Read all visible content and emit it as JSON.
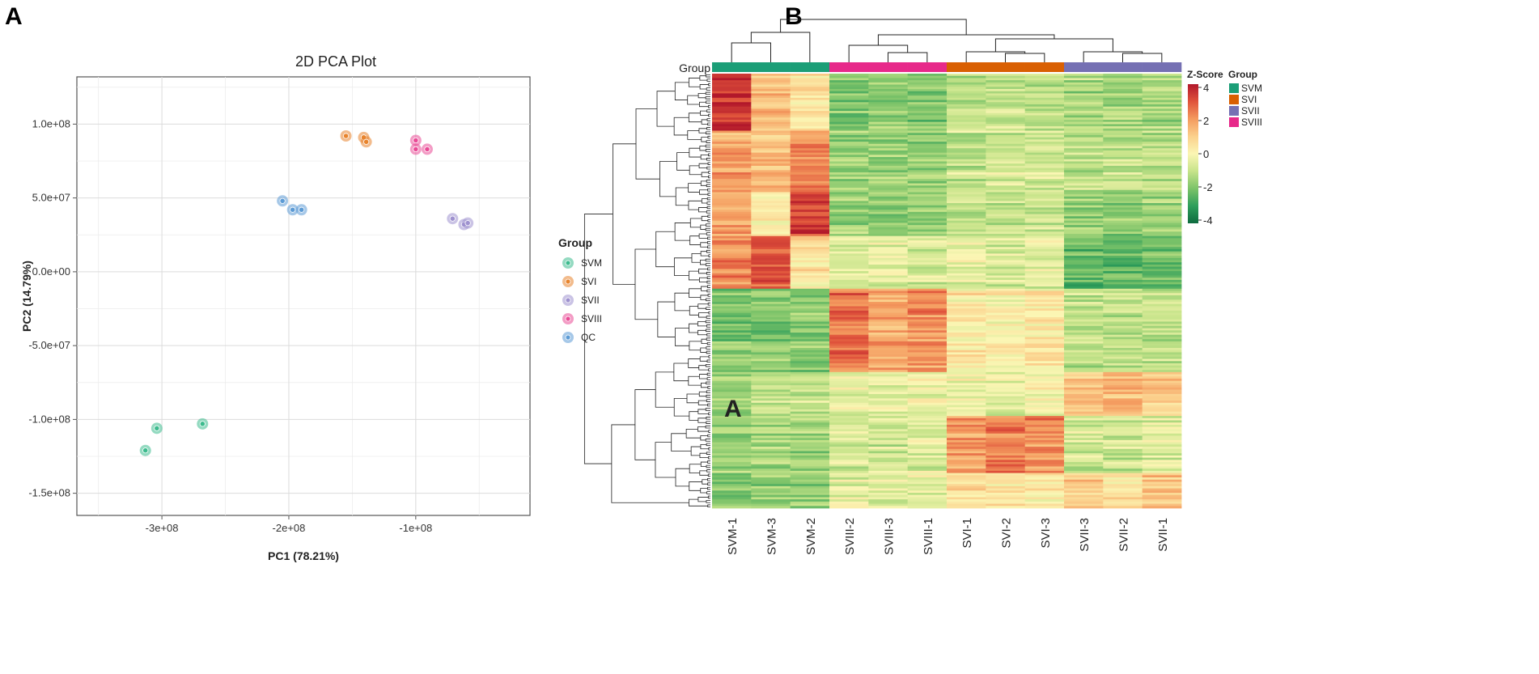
{
  "panel_labels": {
    "a": "A",
    "b": "B"
  },
  "colors": {
    "SVM": "#1B9E77",
    "SVI": "#D95F02",
    "SVII": "#7570B3",
    "SVIII": "#E7298A",
    "QC": "#4A90C8",
    "pca_SVM": "#3DBB8E",
    "pca_SVI": "#E8842D",
    "pca_SVII": "#9E91CF",
    "pca_SVIII": "#E94A96",
    "pca_QC": "#5C9BD5"
  },
  "chart_data": [
    {
      "type": "scatter",
      "title": "2D PCA Plot",
      "xlabel": "PC1 (78.21%)",
      "ylabel": "PC2 (14.79%)",
      "xlim": [
        -367000000,
        -10000000
      ],
      "ylim": [
        -165000000,
        132000000
      ],
      "xticks": [
        {
          "value": -300000000,
          "label": "-3e+08"
        },
        {
          "value": -200000000,
          "label": "-2e+08"
        },
        {
          "value": -100000000,
          "label": "-1e+08"
        }
      ],
      "yticks": [
        {
          "value": 100000000,
          "label": "1.0e+08"
        },
        {
          "value": 50000000,
          "label": "5.0e+07"
        },
        {
          "value": 0,
          "label": "0.0e+00"
        },
        {
          "value": -50000000,
          "label": "-5.0e+07"
        },
        {
          "value": -100000000,
          "label": "-1.0e+08"
        },
        {
          "value": -150000000,
          "label": "-1.5e+08"
        }
      ],
      "legend_title": "Group",
      "legend_position": "right",
      "series": [
        {
          "name": "SVM",
          "points": [
            [
              -304000000,
              -106000000
            ],
            [
              -268000000,
              -103000000
            ],
            [
              -313000000,
              -121000000
            ]
          ]
        },
        {
          "name": "SVI",
          "points": [
            [
              -155000000,
              92000000
            ],
            [
              -141000000,
              91000000
            ],
            [
              -139000000,
              88000000
            ]
          ]
        },
        {
          "name": "SVII",
          "points": [
            [
              -71000000,
              36000000
            ],
            [
              -62000000,
              32000000
            ],
            [
              -59000000,
              33000000
            ]
          ]
        },
        {
          "name": "SVIII",
          "points": [
            [
              -100000000,
              89000000
            ],
            [
              -100000000,
              83000000
            ],
            [
              -91000000,
              83000000
            ]
          ]
        },
        {
          "name": "QC",
          "points": [
            [
              -205000000,
              48000000
            ],
            [
              -197000000,
              42000000
            ],
            [
              -190000000,
              42000000
            ]
          ]
        }
      ]
    },
    {
      "type": "heatmap",
      "title": "",
      "group_label": "Group",
      "columns": [
        "SVM-1",
        "SVM-3",
        "SVM-2",
        "SVIII-2",
        "SVIII-3",
        "SVIII-1",
        "SVI-1",
        "SVI-2",
        "SVI-3",
        "SVII-3",
        "SVII-2",
        "SVII-1"
      ],
      "column_groups": [
        "SVM",
        "SVM",
        "SVM",
        "SVIII",
        "SVIII",
        "SVIII",
        "SVI",
        "SVI",
        "SVI",
        "SVII",
        "SVII",
        "SVII"
      ],
      "colorbar": {
        "title": "Z-Score",
        "min": -4,
        "max": 4,
        "ticks": [
          "4",
          "2",
          "0",
          "-2",
          "-4"
        ],
        "stops": [
          "#0E6B3F",
          "#2E9E5B",
          "#7CC369",
          "#C7E48A",
          "#FBF6B4",
          "#FBD08C",
          "#F49B5F",
          "#E0533B",
          "#B2182B"
        ]
      },
      "legend_title": "Group",
      "legend": [
        "SVM",
        "SVI",
        "SVII",
        "SVIII"
      ],
      "annotation": "A",
      "bands": [
        {
          "rows": 26,
          "values": [
            3.6,
            1.2,
            0.4,
            -2,
            -1.8,
            -1.9,
            -1.2,
            -1.0,
            -1.1,
            -1.4,
            -1.4,
            -1.4
          ]
        },
        {
          "rows": 28,
          "values": [
            1.8,
            1.2,
            2.2,
            -1.7,
            -1.6,
            -1.7,
            -1.0,
            -0.8,
            -0.9,
            -1.1,
            -1.1,
            -1.1
          ]
        },
        {
          "rows": 20,
          "values": [
            2.0,
            0.2,
            3.4,
            -1.6,
            -1.6,
            -1.6,
            -1.1,
            -0.9,
            -0.8,
            -1.5,
            -1.6,
            -1.5
          ]
        },
        {
          "rows": 24,
          "values": [
            2.3,
            3.0,
            0.6,
            -0.6,
            -0.3,
            -0.6,
            -0.3,
            -0.6,
            -0.4,
            -2.2,
            -2.3,
            -2.0
          ]
        },
        {
          "rows": 38,
          "values": [
            -2.0,
            -1.9,
            -1.8,
            2.5,
            1.7,
            2.1,
            0.3,
            0.0,
            0.4,
            -1.1,
            -1.1,
            -1.0
          ]
        },
        {
          "rows": 20,
          "values": [
            -1.4,
            -1.0,
            -1.0,
            -0.3,
            -0.4,
            -0.3,
            -0.2,
            -0.4,
            -0.1,
            1.2,
            1.5,
            1.1
          ]
        },
        {
          "rows": 26,
          "values": [
            -1.6,
            -1.5,
            -1.6,
            -0.6,
            -0.8,
            -0.6,
            2.0,
            2.4,
            2.2,
            -0.8,
            -0.9,
            -0.6
          ]
        },
        {
          "rows": 16,
          "values": [
            -2.0,
            -1.8,
            -1.8,
            -0.5,
            -0.7,
            -0.6,
            0.5,
            0.3,
            0.4,
            0.9,
            0.4,
            1.0
          ]
        }
      ]
    }
  ]
}
